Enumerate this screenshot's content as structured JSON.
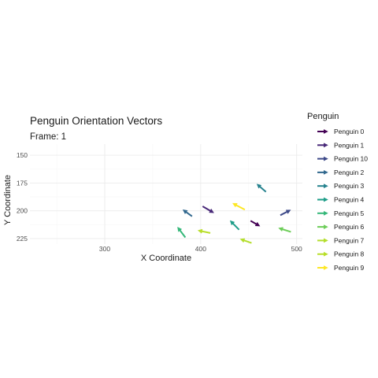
{
  "chart_data": {
    "type": "vector",
    "title": "Penguin Orientation Vectors",
    "subtitle": "Frame: 1",
    "xlabel": "X Coordinate",
    "ylabel": "Y Coordinate",
    "xlim": [
      222,
      506
    ],
    "ylim": [
      230,
      140
    ],
    "y_reversed": true,
    "x_ticks": [
      300,
      400,
      500
    ],
    "y_ticks": [
      150,
      175,
      200,
      225
    ],
    "grid": true,
    "legend_title": "Penguin",
    "legend_position": "right",
    "series": [
      {
        "name": "Penguin 0",
        "color": "#440154",
        "x": 452,
        "y": 209,
        "dx": 8,
        "dy": 4
      },
      {
        "name": "Penguin 1",
        "color": "#482878",
        "x": 402,
        "y": 196,
        "dx": 10,
        "dy": 5
      },
      {
        "name": "Penguin 10",
        "color": "#3E4A89",
        "x": 483,
        "y": 204,
        "dx": 9,
        "dy": -4
      },
      {
        "name": "Penguin 2",
        "color": "#31688E",
        "x": 391,
        "y": 205,
        "dx": -8,
        "dy": -5
      },
      {
        "name": "Penguin 3",
        "color": "#26828E",
        "x": 468,
        "y": 183,
        "dx": -8,
        "dy": -6
      },
      {
        "name": "Penguin 4",
        "color": "#1F9E89",
        "x": 440,
        "y": 217,
        "dx": -8,
        "dy": -7
      },
      {
        "name": "Penguin 5",
        "color": "#35B779",
        "x": 384,
        "y": 224,
        "dx": -7,
        "dy": -8
      },
      {
        "name": "Penguin 6",
        "color": "#6DCD59",
        "x": 494,
        "y": 219,
        "dx": -11,
        "dy": -3
      },
      {
        "name": "Penguin 7",
        "color": "#B4DE2C",
        "x": 453,
        "y": 229,
        "dx": -10,
        "dy": -3
      },
      {
        "name": "Penguin 8",
        "color": "#B8DE29",
        "x": 410,
        "y": 220,
        "dx": -11,
        "dy": -2
      },
      {
        "name": "Penguin 9",
        "color": "#FDE725",
        "x": 446,
        "y": 199,
        "dx": -11,
        "dy": -5
      }
    ]
  }
}
